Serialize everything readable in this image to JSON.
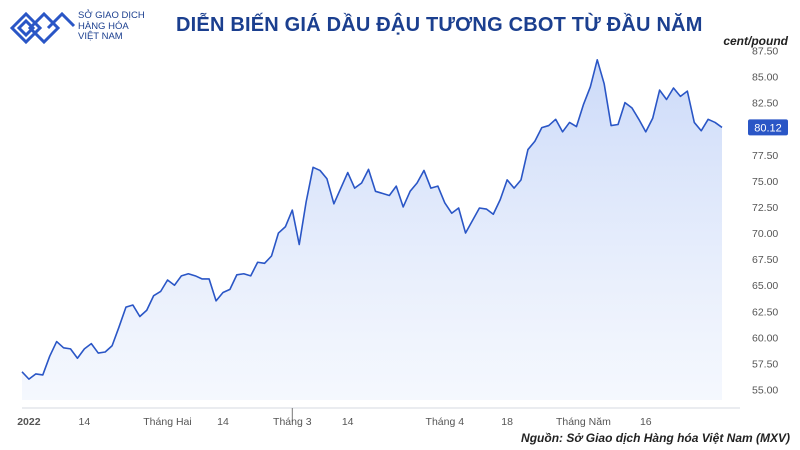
{
  "header": {
    "logo_line1": "SỞ GIAO DỊCH",
    "logo_line2": "HÀNG HÓA",
    "logo_line3": "VIỆT NAM",
    "title": "DIỄN BIẾN GIÁ DẦU ĐẬU TƯƠNG CBOT TỪ ĐẦU NĂM",
    "unit": "cent/pound"
  },
  "footer": {
    "source": "Nguồn: Sở Giao dịch Hàng hóa Việt Nam (MXV)"
  },
  "colors": {
    "line": "#2a56c6",
    "area": "#dce6fb",
    "badge": "#2a56c6",
    "title": "#1b3f8f"
  },
  "chart_data": {
    "type": "area",
    "title": "DIỄN BIẾN GIÁ DẦU ĐẬU TƯƠNG CBOT TỪ ĐẦU NĂM",
    "ylabel": "cent/pound",
    "ylim": [
      54.0,
      88.5
    ],
    "y_ticks": [
      55.0,
      57.5,
      60.0,
      62.5,
      65.0,
      67.5,
      70.0,
      72.5,
      75.0,
      77.5,
      80.0,
      82.5,
      85.0,
      87.5
    ],
    "y_tick_labels": [
      "55.00",
      "57.50",
      "60.00",
      "62.50",
      "65.00",
      "67.50",
      "70.00",
      "72.50",
      "75.00",
      "77.50",
      "80.00",
      "82.50",
      "85.00",
      "87.50"
    ],
    "x_tick_labels": [
      {
        "index": 1,
        "label": "2022"
      },
      {
        "index": 9,
        "label": "14"
      },
      {
        "index": 21,
        "label": "Tháng Hai"
      },
      {
        "index": 29,
        "label": "14"
      },
      {
        "index": 39,
        "label": "Tháng 3",
        "bar": true
      },
      {
        "index": 47,
        "label": "14"
      },
      {
        "index": 61,
        "label": "Tháng 4"
      },
      {
        "index": 70,
        "label": "18"
      },
      {
        "index": 81,
        "label": "Tháng Năm"
      },
      {
        "index": 90,
        "label": "16"
      }
    ],
    "last_value_label": "80.12",
    "grid": false,
    "series": [
      {
        "values": [
          56.7,
          56.0,
          56.5,
          56.4,
          58.2,
          59.6,
          59.0,
          58.9,
          58.0,
          58.9,
          59.4,
          58.5,
          58.6,
          59.2,
          61.0,
          62.9,
          63.1,
          62.0,
          62.6,
          64.0,
          64.4,
          65.5,
          65.0,
          65.9,
          66.1,
          65.9,
          65.6,
          65.6,
          63.5,
          64.3,
          64.6,
          66.0,
          66.1,
          65.9,
          67.2,
          67.1,
          67.8,
          70.0,
          70.6,
          72.2,
          68.9,
          73.0,
          76.3,
          76.0,
          75.2,
          72.8,
          74.3,
          75.8,
          74.3,
          74.8,
          76.1,
          74.0,
          73.8,
          73.6,
          74.5,
          72.5,
          74.0,
          74.8,
          76.0,
          74.3,
          74.5,
          72.9,
          71.9,
          72.4,
          70.0,
          71.2,
          72.4,
          72.3,
          71.8,
          73.2,
          75.1,
          74.3,
          75.1,
          78.0,
          78.8,
          80.1,
          80.3,
          80.9,
          79.7,
          80.6,
          80.2,
          82.3,
          84.0,
          86.6,
          84.3,
          80.3,
          80.4,
          82.5,
          82.0,
          80.9,
          79.7,
          81.0,
          83.7,
          82.8,
          83.9,
          83.1,
          83.6,
          80.6,
          79.8,
          80.9,
          80.6,
          80.12
        ]
      }
    ]
  }
}
